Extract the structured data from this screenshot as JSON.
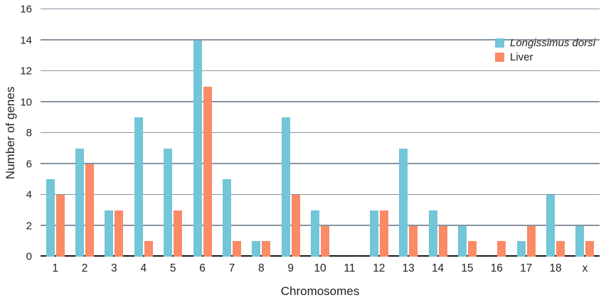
{
  "chart_data": {
    "type": "bar",
    "title": "",
    "xlabel": "Chromosomes",
    "ylabel": "Number of genes",
    "categories": [
      "1",
      "2",
      "3",
      "4",
      "5",
      "6",
      "7",
      "8",
      "9",
      "10",
      "11",
      "12",
      "13",
      "14",
      "15",
      "16",
      "17",
      "18",
      "x"
    ],
    "series": [
      {
        "name": "Longissimus dorsi",
        "color": "#73c5d8",
        "italic": true,
        "values": [
          5,
          7,
          3,
          9,
          7,
          14,
          5,
          1,
          9,
          3,
          0,
          3,
          7,
          3,
          2,
          0,
          1,
          4,
          2
        ]
      },
      {
        "name": "Liver",
        "color": "#fb8a66",
        "italic": false,
        "values": [
          4,
          6,
          3,
          1,
          3,
          11,
          1,
          1,
          4,
          2,
          0,
          3,
          2,
          2,
          1,
          1,
          2,
          1,
          1
        ]
      }
    ],
    "ylim": [
      0,
      16
    ],
    "yticks": [
      0,
      2,
      4,
      6,
      8,
      10,
      12,
      14,
      16
    ],
    "grid": true,
    "legend_position": "top-right",
    "gridline_color": "#8793a0",
    "axis_color": "#1a1a1a",
    "text_color": "#222222",
    "background": "#ffffff"
  }
}
